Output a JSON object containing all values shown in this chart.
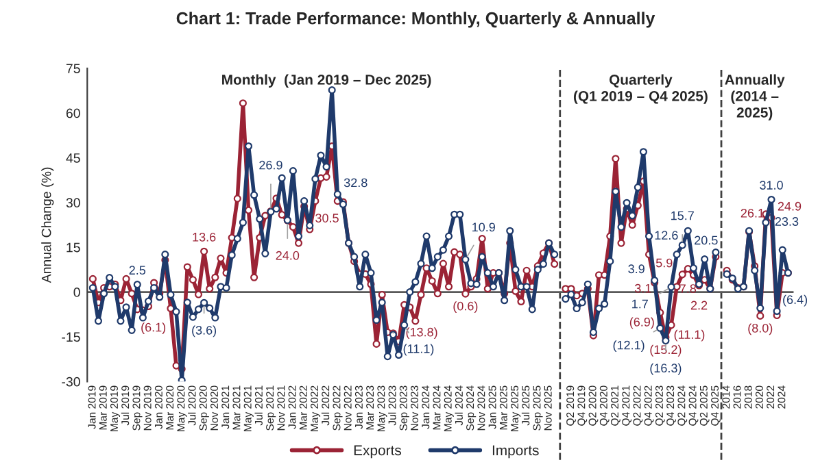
{
  "chart_data": {
    "type": "line",
    "title": "Chart 1: Trade Performance: Monthly, Quarterly & Annually",
    "ylabel": "Annual Change (%)",
    "annotations": [
      "Monthly  (Jan 2019 – Dec 2025)",
      "Quarterly\n(Q1 2019 – Q4 2025)",
      "Annually\n(2014 –\n2025)"
    ],
    "categories": [
      "Jan 2019",
      null,
      "Mar 2019",
      null,
      "May 2019",
      null,
      "Jul 2019",
      null,
      "Sep 2019",
      null,
      "Nov 2019",
      null,
      "Jan 2020",
      null,
      "Mar 2020",
      null,
      "May 2020",
      null,
      "Jul 2020",
      null,
      "Sep 2020",
      null,
      "Nov 2020",
      null,
      "Jan 2021",
      null,
      "Mar 2021",
      null,
      "May 2021",
      null,
      "Jul 2021",
      null,
      "Sep 2021",
      null,
      "Nov 2021",
      null,
      "Jan 2022",
      null,
      "Mar 2022",
      null,
      "May 2022",
      null,
      "Jul 2022",
      null,
      "Sep 2022",
      null,
      "Nov 2022",
      null,
      "Jan 2023",
      null,
      "Mar 2023",
      null,
      "May 2023",
      null,
      "Jul 2023",
      null,
      "Sep 2023",
      null,
      "Nov 2023",
      null,
      "Jan 2024",
      null,
      "Mar 2024",
      null,
      "May 2024",
      null,
      "Jul 2024",
      null,
      "Sep 2024",
      null,
      "Nov 2024",
      null,
      "Jan 2025",
      null,
      "Mar 2025",
      null,
      "May 2025",
      null,
      "Jul 2025",
      null,
      "Sep 2025",
      null,
      "Nov 2025",
      null,
      null,
      null,
      "Q2 2019",
      null,
      "Q4 2019",
      null,
      "Q2 2020",
      null,
      "Q4 2020",
      null,
      "Q2 2021",
      null,
      "Q4 2021",
      null,
      "Q2 2022",
      null,
      "Q4 2022",
      null,
      "Q2 2023",
      null,
      "Q4 2023",
      null,
      "Q2 2024",
      null,
      "Q4 2024",
      null,
      "Q2 2025",
      null,
      "Q4 2025",
      null,
      "2014",
      null,
      "2016",
      null,
      "2018",
      null,
      "2020",
      null,
      "2022",
      null,
      "2024",
      null
    ],
    "series": [
      {
        "name": "Exports",
        "color": "#9b2335",
        "values": [
          4.4,
          -3.5,
          1.4,
          1.8,
          2.6,
          -2.8,
          4.4,
          -0.5,
          -5.8,
          -6.1,
          -4.8,
          3.1,
          -0.5,
          10.7,
          -5.5,
          -24.7,
          -25.8,
          8.4,
          4.1,
          -0.8,
          13.6,
          1.1,
          4.9,
          11.3,
          6.4,
          18.2,
          31.3,
          63.3,
          27.4,
          4.9,
          18.2,
          25.6,
          27.1,
          31.4,
          25.9,
          24.0,
          21.8,
          16.4,
          28.7,
          21.0,
          30.5,
          38.2,
          38.6,
          48.9,
          30.5,
          30.2,
          16.4,
          10.3,
          6.0,
          6.0,
          2.6,
          -17.4,
          -0.9,
          -13.5,
          -13.8,
          -16.6,
          -4.3,
          -5.1,
          -9.7,
          -0.9,
          8.0,
          3.7,
          -0.5,
          9.5,
          1.8,
          13.4,
          12.6,
          -0.6,
          1.8,
          4.4,
          17.9,
          1.1,
          6.4,
          6.4,
          -0.5,
          16.4,
          0.3,
          -3.2,
          7.2,
          1.8,
          8.7,
          13.0,
          16.4,
          9.4,
          null,
          1.1,
          1.1,
          -1.2,
          -0.5,
          1.1,
          -14.6,
          5.7,
          5.7,
          18.7,
          44.7,
          16.4,
          27.9,
          22.5,
          29.0,
          37.1,
          12.6,
          3.1,
          -6.9,
          -15.2,
          -11.1,
          1.8,
          5.9,
          7.8,
          5.7,
          2.2,
          4.1,
          1.1,
          11.8,
          null,
          7.2,
          4.1,
          1.4,
          1.8,
          20.2,
          8.7,
          -8.0,
          26.1,
          24.9,
          -7.8,
          6.4,
          6.4
        ],
        "value_labels": [
          null,
          null,
          null,
          null,
          null,
          null,
          null,
          null,
          null,
          "(6.1)",
          null,
          null,
          null,
          null,
          null,
          null,
          null,
          null,
          null,
          null,
          "13.6",
          null,
          null,
          null,
          null,
          null,
          null,
          null,
          null,
          null,
          null,
          null,
          null,
          null,
          null,
          "24.0",
          null,
          null,
          null,
          null,
          null,
          null,
          null,
          null,
          "30.5",
          null,
          null,
          null,
          null,
          null,
          null,
          null,
          null,
          null,
          "(13.8)",
          null,
          null,
          null,
          null,
          null,
          null,
          null,
          null,
          null,
          null,
          null,
          null,
          "(0.6)",
          null,
          null,
          null,
          null,
          null,
          null,
          null,
          null,
          null,
          null,
          null,
          null,
          null,
          null,
          null,
          null,
          null,
          null,
          null,
          null,
          null,
          null,
          null,
          null,
          null,
          null,
          null,
          null,
          null,
          null,
          null,
          null,
          null,
          "3.1",
          "(6.9)",
          "(15.2)",
          "(11.1)",
          null,
          "5.9",
          "7.8",
          null,
          "2.2",
          null,
          null,
          null,
          null,
          null,
          null,
          null,
          null,
          null,
          null,
          "(8.0)",
          "26.1",
          "24.9",
          null,
          null,
          null
        ]
      },
      {
        "name": "Imports",
        "color": "#1f3a6b",
        "values": [
          1.4,
          -9.7,
          -0.5,
          4.8,
          1.8,
          -9.7,
          -5.1,
          -12.8,
          2.5,
          -8.6,
          -3.1,
          1.4,
          -1.7,
          12.6,
          -0.9,
          -6.6,
          -29.6,
          -3.5,
          -8.4,
          -5.8,
          -3.6,
          -5.4,
          -8.6,
          1.8,
          1.4,
          12.4,
          17.9,
          23.3,
          48.9,
          32.5,
          24.5,
          12.9,
          26.9,
          27.9,
          38.2,
          24.1,
          40.6,
          18.7,
          30.5,
          22.3,
          37.9,
          45.8,
          42.0,
          67.7,
          32.8,
          29.4,
          16.4,
          11.8,
          1.8,
          12.6,
          6.4,
          -9.4,
          -3.5,
          -21.6,
          -14.3,
          -21.1,
          -11.1,
          0.0,
          3.4,
          9.5,
          18.7,
          8.0,
          11.8,
          14.1,
          18.7,
          26.0,
          26.0,
          10.9,
          2.9,
          2.6,
          11.8,
          6.4,
          1.8,
          6.4,
          -2.8,
          20.5,
          7.5,
          1.8,
          1.8,
          -5.8,
          7.5,
          9.4,
          16.4,
          12.6,
          null,
          -2.3,
          -0.8,
          -5.5,
          -3.5,
          2.6,
          -13.5,
          -5.5,
          -4.0,
          10.3,
          33.7,
          21.8,
          29.9,
          25.6,
          35.1,
          47.0,
          18.7,
          3.9,
          -12.1,
          -16.3,
          1.7,
          12.6,
          15.7,
          20.5,
          8.0,
          2.6,
          11.0,
          1.1,
          13.3,
          null,
          6.0,
          4.6,
          1.1,
          1.8,
          20.5,
          7.2,
          -5.4,
          23.3,
          31.0,
          -6.4,
          14.1,
          6.4
        ],
        "value_labels": [
          null,
          null,
          null,
          null,
          null,
          null,
          null,
          null,
          "2.5",
          null,
          null,
          null,
          null,
          null,
          null,
          null,
          null,
          null,
          null,
          null,
          "(3.6)",
          null,
          null,
          null,
          null,
          null,
          null,
          null,
          null,
          null,
          null,
          null,
          "26.9",
          null,
          null,
          null,
          null,
          null,
          null,
          null,
          null,
          null,
          null,
          null,
          "32.8",
          null,
          null,
          null,
          null,
          null,
          null,
          null,
          null,
          null,
          null,
          null,
          "(11.1)",
          null,
          null,
          null,
          null,
          null,
          null,
          null,
          null,
          null,
          null,
          "10.9",
          null,
          null,
          null,
          null,
          null,
          null,
          null,
          null,
          null,
          null,
          null,
          null,
          null,
          null,
          null,
          null,
          null,
          null,
          null,
          null,
          null,
          null,
          null,
          null,
          null,
          null,
          null,
          null,
          null,
          null,
          null,
          null,
          null,
          "3.9",
          "(12.1)",
          "(16.3)",
          "1.7",
          "12.6",
          "15.7",
          "20.5",
          null,
          null,
          null,
          null,
          null,
          null,
          null,
          null,
          null,
          null,
          null,
          null,
          null,
          "23.3",
          "31.0",
          "(6.4)",
          null,
          null
        ]
      }
    ],
    "ylim": [
      -30,
      75
    ],
    "yticks": [
      -30,
      -15,
      0,
      15,
      30,
      45,
      60,
      75
    ],
    "ref_lines": [
      {
        "axis": "y",
        "value": 0,
        "color": "#595959",
        "line_style": "solid"
      }
    ],
    "marker": "circle",
    "line_style": "solid",
    "grid": false,
    "legend": "bottom"
  }
}
